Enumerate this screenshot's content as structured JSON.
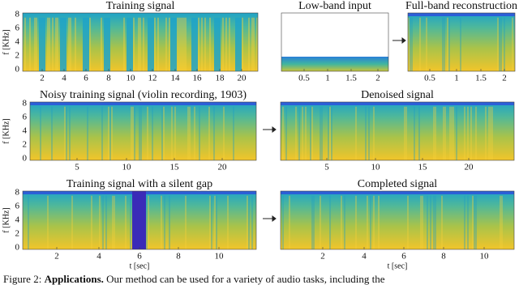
{
  "figure": {
    "panels": [
      {
        "title": "Training signal",
        "ylabel": "f [KHz]",
        "yticks": [
          "0",
          "2",
          "4",
          "6",
          "8"
        ],
        "xticks": [
          "2",
          "4",
          "6",
          "8",
          "10",
          "12",
          "14",
          "16",
          "18",
          "20"
        ]
      },
      {
        "title": "Low-band input",
        "xticks": [
          "0.5",
          "1",
          "1.5",
          "2"
        ]
      },
      {
        "title": "Full-band reconstruction",
        "xticks": [
          "0.5",
          "1",
          "1.5",
          "2"
        ]
      },
      {
        "title": "Noisy training signal (violin recording, 1903)",
        "ylabel": "f [KHz]",
        "yticks": [
          "0",
          "2",
          "4",
          "6",
          "8"
        ],
        "xticks": [
          "5",
          "10",
          "15",
          "20"
        ]
      },
      {
        "title": "Denoised signal",
        "xticks": [
          "5",
          "10",
          "15",
          "20"
        ]
      },
      {
        "title": "Training signal with a silent gap",
        "ylabel": "f [KHz]",
        "yticks": [
          "0",
          "2",
          "4",
          "6",
          "8"
        ],
        "xticks": [
          "2",
          "4",
          "6",
          "8",
          "10"
        ],
        "xlabel": "t [sec]"
      },
      {
        "title": "Completed signal",
        "xticks": [
          "2",
          "4",
          "6",
          "8",
          "10"
        ],
        "xlabel": "t [sec]"
      }
    ],
    "caption": {
      "label": "Figure 2:",
      "heading": "Applications.",
      "text": "Our method can be used for a variety of audio tasks, including the"
    }
  }
}
